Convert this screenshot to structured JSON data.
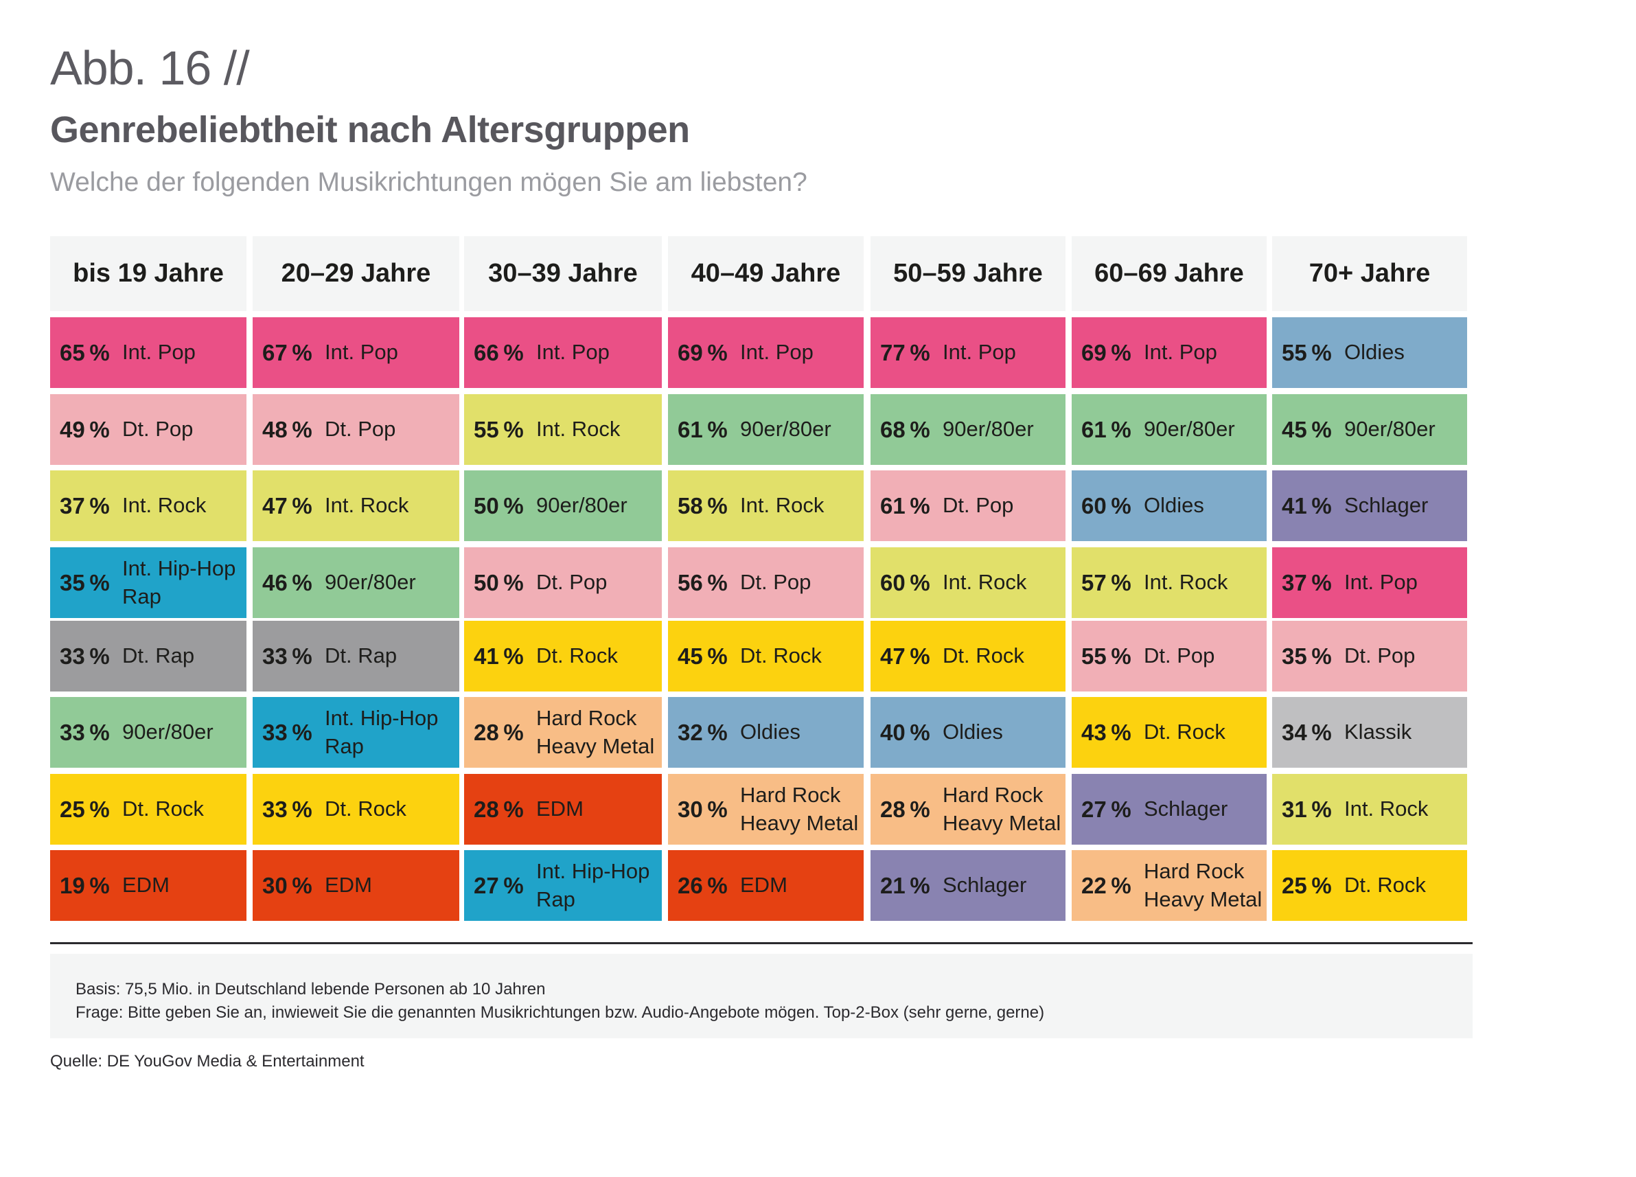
{
  "figure_label": "Abb. 16 //",
  "title": "Genrebeliebtheit nach Altersgruppen",
  "subtitle": "Welche der folgenden Musikrichtungen mögen Sie am liebsten?",
  "genre_colors": {
    "Int. Pop": "#EA5086",
    "Dt. Pop": "#F1AFB6",
    "Int. Rock": "#E1E06A",
    "Dt. Rock": "#FCD20F",
    "90er/80er": "#91CA97",
    "Oldies": "#7FABCA",
    "Schlager": "#8983B1",
    "Int. Hip-Hop\nRap": "#20A3C9",
    "Dt. Rap": "#9C9C9E",
    "Hard Rock\nHeavy Metal": "#F8BD86",
    "EDM": "#E54112",
    "Klassik": "#BFBFC1"
  },
  "chart_data": {
    "type": "table",
    "title": "Genrebeliebtheit nach Altersgruppen",
    "subtitle": "Welche der folgenden Musikrichtungen mögen Sie am liebsten?",
    "unit": "%",
    "columns": [
      {
        "age_group": "bis 19 Jahre",
        "ranking": [
          {
            "value": 65,
            "genre": "Int. Pop"
          },
          {
            "value": 49,
            "genre": "Dt. Pop"
          },
          {
            "value": 37,
            "genre": "Int. Rock"
          },
          {
            "value": 35,
            "genre": "Int. Hip-Hop\nRap"
          },
          {
            "value": 33,
            "genre": "Dt. Rap"
          },
          {
            "value": 33,
            "genre": "90er/80er"
          },
          {
            "value": 25,
            "genre": "Dt. Rock"
          },
          {
            "value": 19,
            "genre": "EDM"
          }
        ]
      },
      {
        "age_group": "20–29 Jahre",
        "ranking": [
          {
            "value": 67,
            "genre": "Int. Pop"
          },
          {
            "value": 48,
            "genre": "Dt. Pop"
          },
          {
            "value": 47,
            "genre": "Int. Rock"
          },
          {
            "value": 46,
            "genre": "90er/80er"
          },
          {
            "value": 33,
            "genre": "Dt. Rap"
          },
          {
            "value": 33,
            "genre": "Int. Hip-Hop\nRap"
          },
          {
            "value": 33,
            "genre": "Dt. Rock"
          },
          {
            "value": 30,
            "genre": "EDM"
          }
        ]
      },
      {
        "age_group": "30–39 Jahre",
        "ranking": [
          {
            "value": 66,
            "genre": "Int. Pop"
          },
          {
            "value": 55,
            "genre": "Int. Rock"
          },
          {
            "value": 50,
            "genre": "90er/80er"
          },
          {
            "value": 50,
            "genre": "Dt. Pop"
          },
          {
            "value": 41,
            "genre": "Dt. Rock"
          },
          {
            "value": 28,
            "genre": "Hard Rock\nHeavy Metal"
          },
          {
            "value": 28,
            "genre": "EDM"
          },
          {
            "value": 27,
            "genre": "Int. Hip-Hop\nRap"
          }
        ]
      },
      {
        "age_group": "40–49 Jahre",
        "ranking": [
          {
            "value": 69,
            "genre": "Int. Pop"
          },
          {
            "value": 61,
            "genre": "90er/80er"
          },
          {
            "value": 58,
            "genre": "Int. Rock"
          },
          {
            "value": 56,
            "genre": "Dt. Pop"
          },
          {
            "value": 45,
            "genre": "Dt. Rock"
          },
          {
            "value": 32,
            "genre": "Oldies"
          },
          {
            "value": 30,
            "genre": "Hard Rock\nHeavy Metal"
          },
          {
            "value": 26,
            "genre": "EDM"
          }
        ]
      },
      {
        "age_group": "50–59 Jahre",
        "ranking": [
          {
            "value": 77,
            "genre": "Int. Pop"
          },
          {
            "value": 68,
            "genre": "90er/80er"
          },
          {
            "value": 61,
            "genre": "Dt. Pop"
          },
          {
            "value": 60,
            "genre": "Int. Rock"
          },
          {
            "value": 47,
            "genre": "Dt. Rock"
          },
          {
            "value": 40,
            "genre": "Oldies"
          },
          {
            "value": 28,
            "genre": "Hard Rock\nHeavy Metal"
          },
          {
            "value": 21,
            "genre": "Schlager"
          }
        ]
      },
      {
        "age_group": "60–69 Jahre",
        "ranking": [
          {
            "value": 69,
            "genre": "Int. Pop"
          },
          {
            "value": 61,
            "genre": "90er/80er"
          },
          {
            "value": 60,
            "genre": "Oldies"
          },
          {
            "value": 57,
            "genre": "Int. Rock"
          },
          {
            "value": 55,
            "genre": "Dt. Pop"
          },
          {
            "value": 43,
            "genre": "Dt. Rock"
          },
          {
            "value": 27,
            "genre": "Schlager"
          },
          {
            "value": 22,
            "genre": "Hard Rock\nHeavy Metal"
          }
        ]
      },
      {
        "age_group": "70+ Jahre",
        "ranking": [
          {
            "value": 55,
            "genre": "Oldies"
          },
          {
            "value": 45,
            "genre": "90er/80er"
          },
          {
            "value": 41,
            "genre": "Schlager"
          },
          {
            "value": 37,
            "genre": "Int. Pop"
          },
          {
            "value": 35,
            "genre": "Dt. Pop"
          },
          {
            "value": 34,
            "genre": "Klassik"
          },
          {
            "value": 31,
            "genre": "Int. Rock"
          },
          {
            "value": 25,
            "genre": "Dt. Rock"
          }
        ]
      }
    ]
  },
  "notes": {
    "basis": "Basis: 75,5 Mio. in Deutschland lebende Personen ab 10 Jahren",
    "question": "Frage: Bitte geben Sie an, inwieweit Sie die genannten Musikrichtungen bzw. Audio-Angebote mögen. Top-2-Box (sehr gerne, gerne)"
  },
  "source": "Quelle: DE YouGov Media & Entertainment"
}
